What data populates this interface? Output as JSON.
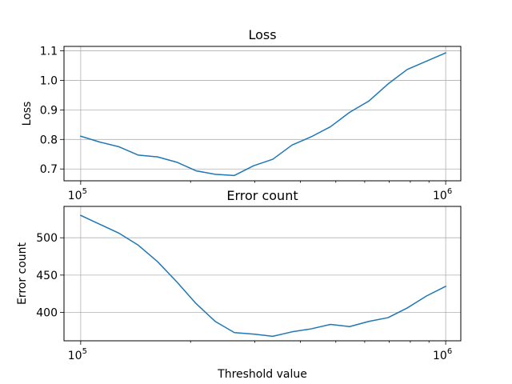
{
  "chart_data": [
    {
      "type": "line",
      "title": "Loss",
      "xlabel": "",
      "ylabel": "Loss",
      "xscale": "log",
      "xlim": [
        90000,
        1100000
      ],
      "ylim": [
        0.66,
        1.115
      ],
      "grid": true,
      "line_color": "#1f77b4",
      "x_ticks": [
        {
          "value": 100000,
          "base": "10",
          "exp": "5"
        },
        {
          "value": 1000000,
          "base": "10",
          "exp": "6"
        }
      ],
      "y_ticks": [
        {
          "value": 0.7,
          "label": "0.7"
        },
        {
          "value": 0.8,
          "label": "0.8"
        },
        {
          "value": 0.9,
          "label": "0.9"
        },
        {
          "value": 1.0,
          "label": "1.0"
        },
        {
          "value": 1.1,
          "label": "1.1"
        }
      ],
      "series": [
        {
          "x": [
            100000,
            112884,
            127427,
            143845,
            162378,
            183298,
            206914,
            233572,
            263665,
            297635,
            335982,
            379269,
            428133,
            483293,
            545559,
            615848,
            695193,
            784760,
            885867,
            1000000
          ],
          "y": [
            0.811,
            0.791,
            0.775,
            0.747,
            0.741,
            0.723,
            0.694,
            0.682,
            0.678,
            0.711,
            0.733,
            0.781,
            0.809,
            0.843,
            0.892,
            0.93,
            0.988,
            1.037,
            1.065,
            1.093
          ]
        }
      ]
    },
    {
      "type": "line",
      "title": "Error count",
      "xlabel": "Threshold value",
      "ylabel": "Error count",
      "xscale": "log",
      "xlim": [
        90000,
        1100000
      ],
      "ylim": [
        362,
        542
      ],
      "grid": true,
      "line_color": "#1f77b4",
      "x_ticks": [
        {
          "value": 100000,
          "base": "10",
          "exp": "5"
        },
        {
          "value": 1000000,
          "base": "10",
          "exp": "6"
        }
      ],
      "y_ticks": [
        {
          "value": 400,
          "label": "400"
        },
        {
          "value": 450,
          "label": "450"
        },
        {
          "value": 500,
          "label": "500"
        }
      ],
      "series": [
        {
          "x": [
            100000,
            112884,
            127427,
            143845,
            162378,
            183298,
            206914,
            233572,
            263665,
            297635,
            335982,
            379269,
            428133,
            483293,
            545559,
            615848,
            695193,
            784760,
            885867,
            1000000
          ],
          "y": [
            530,
            518,
            506,
            490,
            468,
            441,
            412,
            388,
            373,
            371,
            368,
            374,
            378,
            384,
            381,
            388,
            393,
            406,
            422,
            435
          ]
        }
      ]
    }
  ]
}
